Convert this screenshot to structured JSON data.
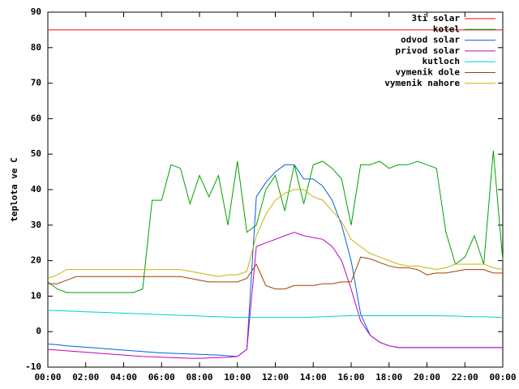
{
  "chart_data": {
    "type": "line",
    "ylabel": "teplota ve C",
    "xlim": [
      0,
      24
    ],
    "ylim": [
      -10,
      90
    ],
    "yticks": [
      -10,
      0,
      10,
      20,
      30,
      40,
      50,
      60,
      70,
      80,
      90
    ],
    "xticks": [
      {
        "value": 0,
        "label": "00:00"
      },
      {
        "value": 2,
        "label": "02:00"
      },
      {
        "value": 4,
        "label": "04:00"
      },
      {
        "value": 6,
        "label": "06:00"
      },
      {
        "value": 8,
        "label": "08:00"
      },
      {
        "value": 10,
        "label": "10:00"
      },
      {
        "value": 12,
        "label": "12:00"
      },
      {
        "value": 14,
        "label": "14:00"
      },
      {
        "value": 16,
        "label": "16:00"
      },
      {
        "value": 18,
        "label": "18:00"
      },
      {
        "value": 20,
        "label": "20:00"
      },
      {
        "value": 22,
        "label": "22:00"
      },
      {
        "value": 24,
        "label": "00:00"
      }
    ],
    "legend": "top-right",
    "x": [
      0,
      0.5,
      1,
      1.5,
      2,
      2.5,
      3,
      3.5,
      4,
      4.5,
      5,
      5.5,
      6,
      6.5,
      7,
      7.5,
      8,
      8.5,
      9,
      9.5,
      10,
      10.5,
      11,
      11.5,
      12,
      12.5,
      13,
      13.5,
      14,
      14.5,
      15,
      15.5,
      16,
      16.5,
      17,
      17.5,
      18,
      18.5,
      19,
      19.5,
      20,
      20.5,
      21,
      21.5,
      22,
      22.5,
      23,
      23.5,
      24
    ],
    "series": [
      {
        "name": "3ti solar",
        "color": "#ff0000",
        "values": [
          85,
          85,
          85,
          85,
          85,
          85,
          85,
          85,
          85,
          85,
          85,
          85,
          85,
          85,
          85,
          85,
          85,
          85,
          85,
          85,
          85,
          85,
          85,
          85,
          85,
          85,
          85,
          85,
          85,
          85,
          85,
          85,
          85,
          85,
          85,
          85,
          85,
          85,
          85,
          85,
          85,
          85,
          85,
          85,
          85,
          85,
          85,
          85,
          85
        ]
      },
      {
        "name": "kotel",
        "color": "#00a000",
        "values": [
          14,
          12,
          11,
          11,
          11,
          11,
          11,
          11,
          11,
          11,
          12,
          37,
          37,
          47,
          46,
          36,
          44,
          38,
          44,
          30,
          48,
          28,
          30,
          40,
          44,
          34,
          47,
          36,
          47,
          48,
          46,
          43,
          30,
          47,
          47,
          48,
          46,
          47,
          47,
          48,
          47,
          46,
          28,
          19,
          21,
          27,
          19,
          51,
          20
        ]
      },
      {
        "name": "odvod solar",
        "color": "#0060e0",
        "values": [
          -3.5,
          -3.7,
          -4,
          -4.2,
          -4.4,
          -4.6,
          -4.8,
          -5,
          -5.2,
          -5.4,
          -5.6,
          -5.8,
          -6,
          -6.1,
          -6.2,
          -6.3,
          -6.4,
          -6.5,
          -6.6,
          -6.8,
          -7,
          -5,
          38,
          42,
          45,
          47,
          47,
          43,
          43,
          41,
          37,
          30,
          20,
          5,
          -1,
          -3,
          -4,
          -4.5,
          -4.5,
          -4.5,
          -4.5,
          -4.5,
          -4.5,
          -4.5,
          -4.5,
          -4.5,
          -4.5,
          -4.5,
          -4.5
        ]
      },
      {
        "name": "privod solar",
        "color": "#c000c0",
        "values": [
          -5,
          -5.2,
          -5.4,
          -5.6,
          -5.8,
          -6,
          -6.2,
          -6.4,
          -6.6,
          -6.8,
          -7,
          -7.1,
          -7.2,
          -7.3,
          -7.4,
          -7.5,
          -7.5,
          -7.4,
          -7.3,
          -7.2,
          -7,
          -5,
          24,
          25,
          26,
          27,
          28,
          27,
          26.5,
          26,
          24,
          20,
          12,
          3,
          -1,
          -3,
          -4,
          -4.5,
          -4.5,
          -4.5,
          -4.5,
          -4.5,
          -4.5,
          -4.5,
          -4.5,
          -4.5,
          -4.5,
          -4.5,
          -4.5
        ]
      },
      {
        "name": "kutloch",
        "color": "#00d0d0",
        "values": [
          6,
          5.9,
          5.8,
          5.7,
          5.6,
          5.5,
          5.4,
          5.3,
          5.2,
          5.1,
          5,
          4.9,
          4.8,
          4.7,
          4.6,
          4.5,
          4.4,
          4.3,
          4.2,
          4.1,
          4,
          4,
          4,
          4,
          4,
          4,
          4,
          4,
          4.1,
          4.2,
          4.3,
          4.4,
          4.5,
          4.5,
          4.5,
          4.5,
          4.5,
          4.5,
          4.5,
          4.5,
          4.5,
          4.5,
          4.4,
          4.4,
          4.3,
          4.2,
          4.2,
          4.1,
          4
        ]
      },
      {
        "name": "vymenik dole",
        "color": "#a04000",
        "values": [
          13.5,
          13.5,
          14.5,
          15.5,
          15.5,
          15.5,
          15.5,
          15.5,
          15.5,
          15.5,
          15.5,
          15.5,
          15.5,
          15.5,
          15.5,
          15,
          14.5,
          14,
          14,
          14,
          14,
          15,
          19,
          13,
          12,
          12,
          13,
          13,
          13,
          13.5,
          13.5,
          14,
          14,
          21,
          20.5,
          19.5,
          18.5,
          18,
          18,
          17.5,
          16,
          16.5,
          16.5,
          17,
          17.5,
          17.5,
          17.5,
          16.5,
          16.5
        ]
      },
      {
        "name": "vymenik nahore",
        "color": "#c8b400",
        "values": [
          15,
          16,
          17.5,
          17.5,
          17.5,
          17.5,
          17.5,
          17.5,
          17.5,
          17.5,
          17.5,
          17.5,
          17.5,
          17.5,
          17.5,
          17,
          16.5,
          16,
          15.5,
          16,
          16,
          17,
          27,
          33,
          37,
          39,
          40,
          40,
          38,
          37,
          34,
          31,
          26,
          24,
          22,
          21,
          20,
          19,
          18.5,
          18.5,
          18,
          17.5,
          18,
          19,
          19,
          19,
          19,
          18,
          17.5
        ]
      }
    ]
  }
}
